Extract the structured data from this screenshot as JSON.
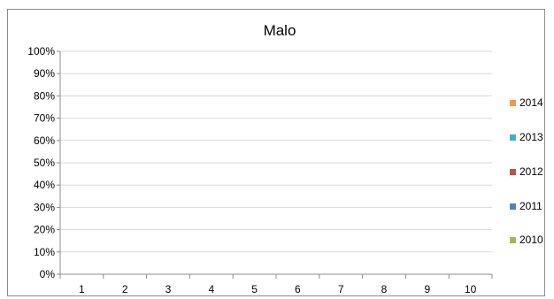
{
  "chart_data": {
    "type": "bar",
    "title": "Malo",
    "categories": [
      "1",
      "2",
      "3",
      "4",
      "5",
      "6",
      "7",
      "8",
      "9",
      "10"
    ],
    "y_ticks": [
      "0%",
      "10%",
      "20%",
      "30%",
      "40%",
      "50%",
      "60%",
      "70%",
      "80%",
      "90%",
      "100%"
    ],
    "ylim": [
      0,
      100
    ],
    "grid": true,
    "legend_position": "right",
    "series": [
      {
        "name": "2014",
        "color": "#F79646",
        "values": [
          0,
          0,
          0,
          0,
          0,
          0,
          0,
          0,
          0,
          0
        ]
      },
      {
        "name": "2013",
        "color": "#4BACC6",
        "values": [
          0,
          0,
          0,
          0,
          0,
          0,
          0,
          0,
          0,
          0
        ]
      },
      {
        "name": "2012",
        "color": "#C0504D",
        "values": [
          0,
          0,
          0,
          0,
          0,
          0,
          0,
          0,
          0,
          0
        ]
      },
      {
        "name": "2011",
        "color": "#4F81BD",
        "values": [
          0,
          0,
          0,
          0,
          0,
          0,
          0,
          0,
          0,
          0
        ]
      },
      {
        "name": "2010",
        "color": "#9BBB59",
        "values": [
          0,
          0,
          0,
          0,
          0,
          0,
          0,
          0,
          0,
          0
        ]
      }
    ]
  }
}
